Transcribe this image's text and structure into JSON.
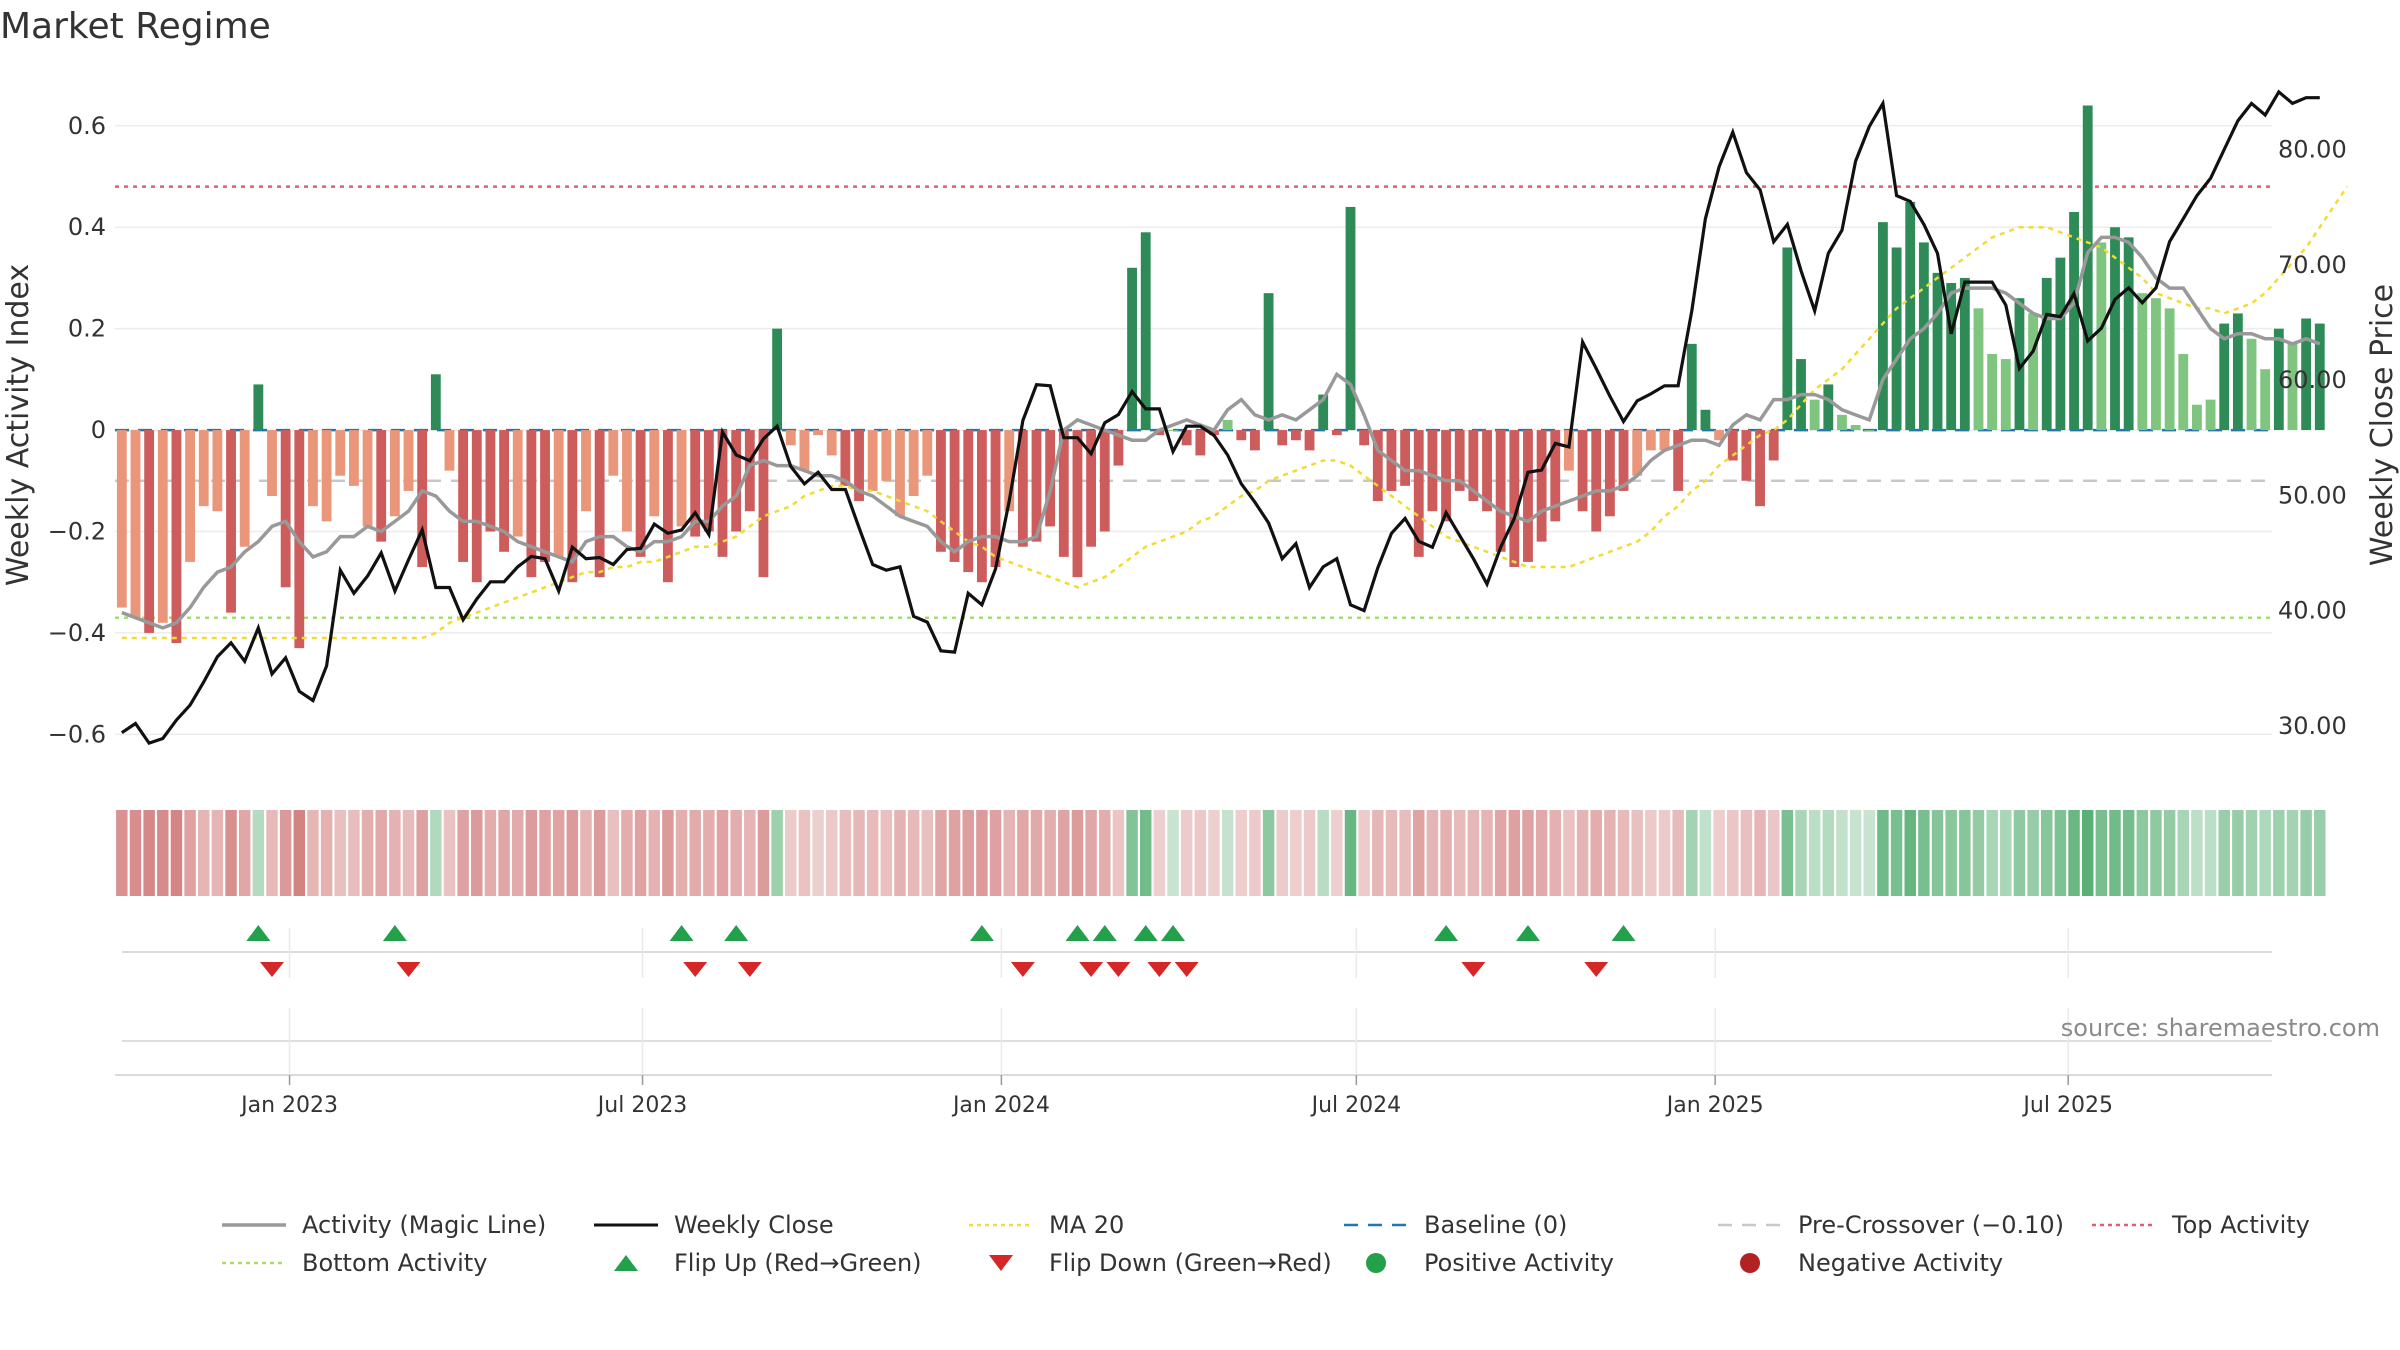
{
  "title": "Market Regime",
  "source": "source: sharemaestro.com",
  "colors": {
    "green_strong": "#2e8b57",
    "green_light": "#7fc47f",
    "red_strong": "#cd5c5c",
    "red_light": "#e9967a",
    "magic_line": "#999999",
    "close": "#111111",
    "ma20": "#f0dc32",
    "baseline": "#1f77b4",
    "pre_crossover": "#c8c8c8",
    "top_activity": "#e06070",
    "bottom_activity": "#a8dc6e",
    "flip_up": "#22a04a",
    "flip_down": "#d62728"
  },
  "chart_data": {
    "type": "bar",
    "start_date": "2022-10-07",
    "weeks": 158,
    "ylabel": "Weekly Activity Index",
    "ylabel_right": "Weekly Close Price",
    "ylim": [
      -0.69,
      0.71
    ],
    "ylim_right": [
      25.3,
      86.9
    ],
    "yticks": [
      "−0.6",
      "−0.4",
      "−0.2",
      "0",
      "0.2",
      "0.4",
      "0.6"
    ],
    "yticks_right": [
      "30.00",
      "40.00",
      "50.00",
      "60.00",
      "70.00",
      "80.00"
    ],
    "xticks": [
      "Jan 2023",
      "Jul 2023",
      "Jan 2024",
      "Jul 2024",
      "Jan 2025",
      "Jul 2025"
    ],
    "xtick_dates": [
      "2023-01-01",
      "2023-07-01",
      "2024-01-01",
      "2024-07-01",
      "2025-01-01",
      "2025-07-01"
    ],
    "top_activity": 0.48,
    "bottom_activity": -0.37,
    "pre_crossover": -0.1,
    "series": [
      {
        "name": "Weekly Activity",
        "values": [
          -0.35,
          -0.37,
          -0.4,
          -0.38,
          -0.42,
          -0.26,
          -0.15,
          -0.16,
          -0.36,
          -0.23,
          0.09,
          -0.13,
          -0.31,
          -0.43,
          -0.15,
          -0.18,
          -0.09,
          -0.11,
          -0.19,
          -0.22,
          -0.17,
          -0.12,
          -0.27,
          0.11,
          -0.08,
          -0.26,
          -0.3,
          -0.2,
          -0.24,
          -0.21,
          -0.29,
          -0.26,
          -0.25,
          -0.3,
          -0.16,
          -0.29,
          -0.09,
          -0.2,
          -0.25,
          -0.17,
          -0.3,
          -0.19,
          -0.21,
          -0.2,
          -0.25,
          -0.2,
          -0.16,
          -0.29,
          0.2,
          -0.03,
          -0.08,
          -0.01,
          -0.05,
          -0.11,
          -0.14,
          -0.12,
          -0.1,
          -0.17,
          -0.13,
          -0.09,
          -0.24,
          -0.26,
          -0.28,
          -0.3,
          -0.27,
          -0.16,
          -0.23,
          -0.22,
          -0.19,
          -0.25,
          -0.29,
          -0.23,
          -0.2,
          -0.07,
          0.32,
          0.39,
          -0.01,
          0.0,
          -0.03,
          -0.05,
          -0.01,
          0.02,
          -0.02,
          -0.04,
          0.27,
          -0.03,
          -0.02,
          -0.04,
          0.07,
          -0.01,
          0.44,
          -0.03,
          -0.14,
          -0.12,
          -0.11,
          -0.25,
          -0.16,
          -0.18,
          -0.12,
          -0.14,
          -0.16,
          -0.24,
          -0.27,
          -0.26,
          -0.22,
          -0.18,
          -0.08,
          -0.16,
          -0.2,
          -0.17,
          -0.12,
          -0.09,
          -0.04,
          -0.04,
          -0.12,
          0.17,
          0.04,
          -0.02,
          -0.06,
          -0.1,
          -0.15,
          -0.06,
          0.36,
          0.14,
          0.06,
          0.09,
          0.03,
          0.01,
          0.0,
          0.41,
          0.36,
          0.45,
          0.37,
          0.31,
          0.29,
          0.3,
          0.24,
          0.15,
          0.14,
          0.26,
          0.23,
          0.3,
          0.34,
          0.43,
          0.64,
          0.37,
          0.4,
          0.38,
          0.27,
          0.26,
          0.24,
          0.15,
          0.05,
          0.06,
          0.21,
          0.23,
          0.18,
          0.12,
          0.2,
          0.17,
          0.22,
          0.21
        ]
      },
      {
        "name": "Weekly Close",
        "values": [
          29.4,
          30.2,
          28.5,
          28.9,
          30.5,
          31.8,
          33.8,
          36.0,
          37.2,
          35.6,
          38.5,
          34.5,
          35.9,
          33.0,
          32.2,
          35.2,
          43.5,
          41.5,
          43.0,
          45.0,
          41.7,
          44.4,
          47.0,
          42.0,
          42.0,
          39.2,
          41.0,
          42.5,
          42.5,
          43.8,
          44.7,
          44.5,
          41.7,
          45.5,
          44.5,
          44.6,
          44.0,
          45.3,
          45.4,
          47.5,
          46.7,
          47.0,
          48.5,
          46.6,
          55.5,
          53.5,
          53.0,
          54.9,
          56.0,
          52.5,
          51.0,
          52.0,
          50.5,
          50.5,
          47.2,
          44.0,
          43.5,
          43.8,
          39.5,
          39.0,
          36.5,
          36.4,
          41.5,
          40.5,
          43.6,
          49.5,
          56.5,
          59.6,
          59.5,
          55.0,
          55.0,
          53.6,
          56.3,
          57.0,
          59.0,
          57.5,
          57.5,
          53.8,
          56.0,
          56.0,
          55.2,
          53.5,
          51.0,
          49.4,
          47.6,
          44.5,
          45.8,
          42.0,
          43.8,
          44.5,
          40.5,
          40.0,
          43.7,
          46.7,
          48.0,
          46.0,
          45.5,
          48.5,
          46.5,
          44.5,
          42.3,
          45.5,
          48.0,
          52.0,
          52.2,
          54.5,
          54.2,
          63.3,
          61.0,
          58.6,
          56.4,
          58.2,
          58.8,
          59.5,
          59.5,
          66.0,
          74.0,
          78.5,
          81.5,
          78.0,
          76.5,
          72.0,
          73.5,
          69.5,
          66.0,
          71.0,
          73.0,
          79.0,
          82.0,
          84.0,
          76.0,
          75.5,
          73.5,
          71.0,
          64.0,
          68.5,
          68.5,
          68.5,
          66.5,
          61.0,
          62.5,
          65.7,
          65.5,
          67.5,
          63.4,
          64.5,
          67.0,
          68.0,
          66.7,
          68.0,
          72.0,
          74.0,
          76.0,
          77.5,
          80.0,
          82.5,
          84.0,
          83.0,
          85.0,
          84.0,
          84.5,
          84.5
        ]
      },
      {
        "name": "Activity (Magic Line)",
        "values": [
          -0.36,
          -0.37,
          -0.38,
          -0.39,
          -0.38,
          -0.35,
          -0.31,
          -0.28,
          -0.27,
          -0.24,
          -0.22,
          -0.19,
          -0.18,
          -0.22,
          -0.25,
          -0.24,
          -0.21,
          -0.21,
          -0.19,
          -0.2,
          -0.18,
          -0.16,
          -0.12,
          -0.13,
          -0.16,
          -0.18,
          -0.18,
          -0.19,
          -0.2,
          -0.22,
          -0.23,
          -0.24,
          -0.25,
          -0.26,
          -0.22,
          -0.21,
          -0.21,
          -0.23,
          -0.24,
          -0.22,
          -0.22,
          -0.21,
          -0.18,
          -0.18,
          -0.15,
          -0.13,
          -0.07,
          -0.06,
          -0.07,
          -0.07,
          -0.08,
          -0.09,
          -0.09,
          -0.1,
          -0.12,
          -0.13,
          -0.15,
          -0.17,
          -0.18,
          -0.19,
          -0.22,
          -0.24,
          -0.22,
          -0.21,
          -0.21,
          -0.22,
          -0.22,
          -0.21,
          -0.12,
          0.0,
          0.02,
          0.01,
          0.0,
          -0.01,
          -0.02,
          -0.02,
          0.0,
          0.01,
          0.02,
          0.01,
          0.0,
          0.04,
          0.06,
          0.03,
          0.02,
          0.03,
          0.02,
          0.04,
          0.06,
          0.11,
          0.09,
          0.03,
          -0.04,
          -0.06,
          -0.08,
          -0.08,
          -0.09,
          -0.1,
          -0.1,
          -0.12,
          -0.14,
          -0.16,
          -0.17,
          -0.18,
          -0.16,
          -0.15,
          -0.14,
          -0.13,
          -0.12,
          -0.12,
          -0.11,
          -0.09,
          -0.06,
          -0.04,
          -0.03,
          -0.02,
          -0.02,
          -0.03,
          0.01,
          0.03,
          0.02,
          0.06,
          0.06,
          0.07,
          0.07,
          0.06,
          0.04,
          0.03,
          0.02,
          0.1,
          0.14,
          0.18,
          0.2,
          0.23,
          0.27,
          0.28,
          0.28,
          0.28,
          0.27,
          0.25,
          0.23,
          0.22,
          0.22,
          0.25,
          0.35,
          0.38,
          0.38,
          0.37,
          0.34,
          0.3,
          0.28,
          0.28,
          0.24,
          0.2,
          0.18,
          0.19,
          0.19,
          0.18,
          0.18,
          0.17,
          0.18,
          0.17
        ]
      },
      {
        "name": "MA 20",
        "values": [
          -0.41,
          -0.41,
          -0.41,
          -0.41,
          -0.41,
          -0.41,
          -0.41,
          -0.41,
          -0.41,
          -0.41,
          -0.41,
          -0.41,
          -0.41,
          -0.41,
          -0.41,
          -0.41,
          -0.41,
          -0.41,
          -0.41,
          -0.41,
          -0.41,
          -0.41,
          -0.41,
          -0.4,
          -0.38,
          -0.37,
          -0.36,
          -0.35,
          -0.34,
          -0.33,
          -0.32,
          -0.31,
          -0.3,
          -0.29,
          -0.28,
          -0.28,
          -0.27,
          -0.27,
          -0.26,
          -0.26,
          -0.25,
          -0.24,
          -0.23,
          -0.23,
          -0.22,
          -0.21,
          -0.19,
          -0.17,
          -0.16,
          -0.15,
          -0.13,
          -0.12,
          -0.11,
          -0.11,
          -0.12,
          -0.12,
          -0.13,
          -0.14,
          -0.15,
          -0.16,
          -0.18,
          -0.2,
          -0.22,
          -0.23,
          -0.25,
          -0.26,
          -0.27,
          -0.28,
          -0.29,
          -0.3,
          -0.31,
          -0.3,
          -0.29,
          -0.27,
          -0.25,
          -0.23,
          -0.22,
          -0.21,
          -0.2,
          -0.18,
          -0.17,
          -0.15,
          -0.13,
          -0.12,
          -0.1,
          -0.09,
          -0.08,
          -0.07,
          -0.06,
          -0.06,
          -0.07,
          -0.09,
          -0.11,
          -0.13,
          -0.15,
          -0.17,
          -0.19,
          -0.21,
          -0.22,
          -0.23,
          -0.24,
          -0.25,
          -0.26,
          -0.27,
          -0.27,
          -0.27,
          -0.27,
          -0.26,
          -0.25,
          -0.24,
          -0.23,
          -0.22,
          -0.2,
          -0.17,
          -0.15,
          -0.12,
          -0.1,
          -0.07,
          -0.05,
          -0.03,
          -0.01,
          0.0,
          0.02,
          0.05,
          0.08,
          0.1,
          0.12,
          0.15,
          0.18,
          0.21,
          0.24,
          0.26,
          0.28,
          0.3,
          0.32,
          0.34,
          0.36,
          0.38,
          0.39,
          0.4,
          0.4,
          0.4,
          0.39,
          0.38,
          0.37,
          0.36,
          0.34,
          0.32,
          0.3,
          0.27,
          0.26,
          0.25,
          0.24,
          0.24,
          0.23,
          0.24,
          0.25,
          0.27,
          0.3,
          0.33,
          0.36,
          0.4,
          0.44,
          0.48
        ]
      }
    ],
    "flip_up_weeks": [
      10,
      20,
      41,
      45,
      63,
      70,
      72,
      75,
      77,
      97,
      103,
      110
    ],
    "flip_down_weeks": [
      11,
      21,
      42,
      46,
      66,
      71,
      73,
      76,
      78,
      99,
      108
    ],
    "regime_strip_note": "one cell per week, colour follows weekly activity sign and magnitude"
  },
  "legend": {
    "items": [
      {
        "label": "Activity (Magic Line)",
        "icon": "solid-line-icon"
      },
      {
        "label": "Weekly Close",
        "icon": "solid-line-icon"
      },
      {
        "label": "MA 20",
        "icon": "dotted-line-icon"
      },
      {
        "label": "Baseline (0)",
        "icon": "dashed-line-icon"
      },
      {
        "label": "Pre-Crossover (−0.10)",
        "icon": "dashed-line-icon"
      },
      {
        "label": "Top Activity",
        "icon": "dotted-line-icon"
      },
      {
        "label": "Bottom Activity",
        "icon": "dotted-line-icon"
      },
      {
        "label": "Flip Up (Red→Green)",
        "icon": "triangle-up-icon"
      },
      {
        "label": "Flip Down (Green→Red)",
        "icon": "triangle-down-icon"
      },
      {
        "label": "Positive Activity",
        "icon": "circle-icon"
      },
      {
        "label": "Negative Activity",
        "icon": "circle-icon"
      }
    ]
  }
}
